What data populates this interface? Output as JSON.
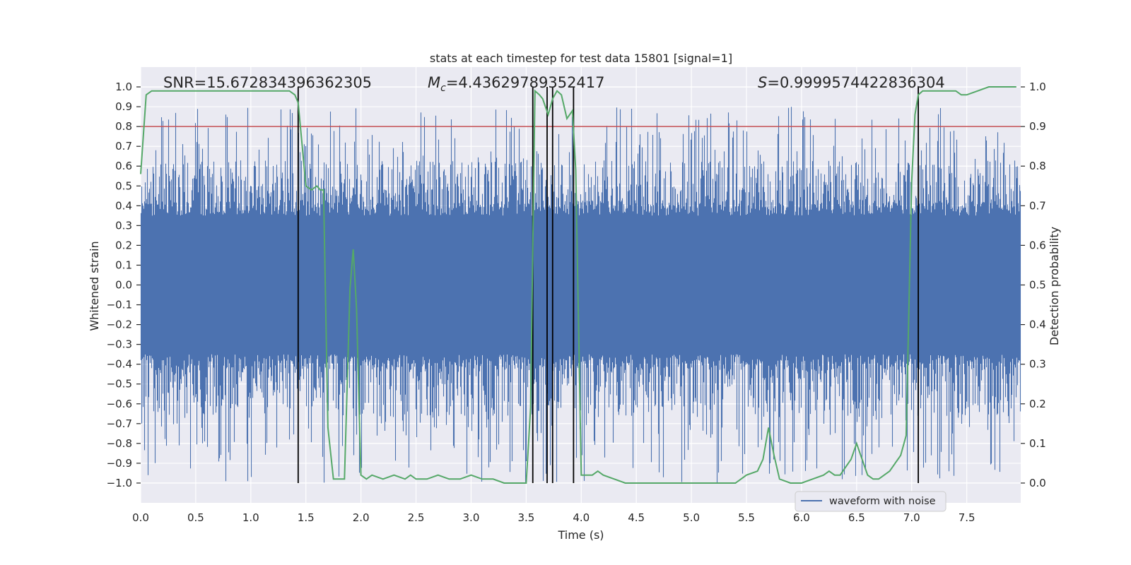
{
  "chart_data": {
    "type": "line",
    "title": "stats at each timestep for test data 15801 [signal=1]",
    "xlabel": "Time (s)",
    "ylabel": "Whitened strain",
    "ylabel_right": "Detection probability",
    "xlim": [
      0.0,
      7.99
    ],
    "ylim": [
      -1.1,
      1.1
    ],
    "ylim_right": [
      -0.05,
      1.05
    ],
    "x_ticks": [
      0.0,
      0.5,
      1.0,
      1.5,
      2.0,
      2.5,
      3.0,
      3.5,
      4.0,
      4.5,
      5.0,
      5.5,
      6.0,
      6.5,
      7.0,
      7.5
    ],
    "x_tick_labels": [
      "0.0",
      "0.5",
      "1.0",
      "1.5",
      "2.0",
      "2.5",
      "3.0",
      "3.5",
      "4.0",
      "4.5",
      "5.0",
      "5.5",
      "6.0",
      "6.5",
      "7.0",
      "7.5"
    ],
    "y_ticks": [
      1.0,
      0.9,
      0.8,
      0.7,
      0.6,
      0.5,
      0.4,
      0.3,
      0.2,
      0.1,
      0.0,
      -0.1,
      -0.2,
      -0.3,
      -0.4,
      -0.5,
      -0.6,
      -0.7,
      -0.8,
      -0.9,
      -1.0
    ],
    "y_tick_labels": [
      "1.0",
      "0.9",
      "0.8",
      "0.7",
      "0.6",
      "0.5",
      "0.4",
      "0.3",
      "0.2",
      "0.1",
      "0.0",
      "−0.1",
      "−0.2",
      "−0.3",
      "−0.4",
      "−0.5",
      "−0.6",
      "−0.7",
      "−0.8",
      "−0.9",
      "−1.0"
    ],
    "y_right_ticks": [
      1.0,
      0.9,
      0.8,
      0.7,
      0.6,
      0.5,
      0.4,
      0.3,
      0.2,
      0.1,
      0.0
    ],
    "y_right_tick_labels": [
      "1.0",
      "0.9",
      "0.8",
      "0.7",
      "0.6",
      "0.5",
      "0.4",
      "0.3",
      "0.2",
      "0.1",
      "0.0"
    ],
    "annotations": {
      "snr": "SNR=15.672834396362305",
      "mc_symbol": "M",
      "mc_sub": "c",
      "mc_value": "=4.43629789352417",
      "s_symbol": "S",
      "s_value": "=0.9999574422836304"
    },
    "threshold": {
      "value": 0.9,
      "axis": "right",
      "color": "#c44e52"
    },
    "vertical_lines": [
      1.43,
      3.56,
      3.69,
      3.74,
      3.93,
      7.06
    ],
    "legend": {
      "label": "waveform with noise",
      "location": "lower-right"
    },
    "colors": {
      "waveform": "#4c72b0",
      "probability": "#55a868",
      "threshold": "#c44e52",
      "vlines": "#000000",
      "background": "#eaeaf2",
      "grid": "#ffffff"
    },
    "waveform_summary": {
      "series": "waveform with noise",
      "duration_s": 7.99,
      "core_amplitude": 0.35,
      "peak_max": 0.9,
      "peak_min": -1.0
    },
    "series": [
      {
        "name": "detection probability",
        "axis": "right",
        "x": [
          0.0,
          0.05,
          0.1,
          0.2,
          0.3,
          0.4,
          0.5,
          0.6,
          0.7,
          0.8,
          0.9,
          1.0,
          1.1,
          1.2,
          1.3,
          1.35,
          1.4,
          1.43,
          1.47,
          1.5,
          1.55,
          1.6,
          1.63,
          1.66,
          1.7,
          1.75,
          1.8,
          1.85,
          1.9,
          1.93,
          1.96,
          2.0,
          2.05,
          2.1,
          2.2,
          2.3,
          2.4,
          2.45,
          2.5,
          2.6,
          2.7,
          2.8,
          2.9,
          3.0,
          3.1,
          3.2,
          3.3,
          3.4,
          3.45,
          3.5,
          3.54,
          3.58,
          3.62,
          3.65,
          3.7,
          3.74,
          3.78,
          3.82,
          3.87,
          3.92,
          3.95,
          4.0,
          4.05,
          4.1,
          4.15,
          4.2,
          4.3,
          4.4,
          4.5,
          4.6,
          4.8,
          5.0,
          5.2,
          5.4,
          5.5,
          5.6,
          5.65,
          5.7,
          5.75,
          5.8,
          5.9,
          6.0,
          6.1,
          6.2,
          6.25,
          6.3,
          6.35,
          6.4,
          6.45,
          6.5,
          6.55,
          6.6,
          6.65,
          6.7,
          6.75,
          6.8,
          6.9,
          6.95,
          7.0,
          7.03,
          7.06,
          7.1,
          7.15,
          7.2,
          7.3,
          7.35,
          7.4,
          7.45,
          7.5,
          7.6,
          7.7,
          7.8,
          7.85,
          7.9,
          7.95
        ],
        "values": [
          0.78,
          0.98,
          0.99,
          0.99,
          0.99,
          0.99,
          0.99,
          0.99,
          0.99,
          0.99,
          0.99,
          0.99,
          0.99,
          0.99,
          0.99,
          0.99,
          0.98,
          0.96,
          0.84,
          0.75,
          0.74,
          0.75,
          0.74,
          0.74,
          0.14,
          0.01,
          0.01,
          0.01,
          0.49,
          0.59,
          0.44,
          0.02,
          0.01,
          0.02,
          0.01,
          0.02,
          0.01,
          0.02,
          0.01,
          0.01,
          0.02,
          0.01,
          0.01,
          0.02,
          0.01,
          0.01,
          0.0,
          0.0,
          0.0,
          0.0,
          0.19,
          0.99,
          0.98,
          0.97,
          0.93,
          0.97,
          0.99,
          0.98,
          0.92,
          0.94,
          0.79,
          0.02,
          0.02,
          0.02,
          0.03,
          0.02,
          0.01,
          0.0,
          0.0,
          0.0,
          0.0,
          0.0,
          0.0,
          0.0,
          0.02,
          0.03,
          0.06,
          0.14,
          0.07,
          0.01,
          0.0,
          0.0,
          0.01,
          0.02,
          0.03,
          0.02,
          0.02,
          0.04,
          0.06,
          0.1,
          0.06,
          0.02,
          0.01,
          0.01,
          0.02,
          0.03,
          0.07,
          0.12,
          0.76,
          0.93,
          0.98,
          0.99,
          0.99,
          0.99,
          0.99,
          0.99,
          0.99,
          0.98,
          0.98,
          0.99,
          1.0,
          1.0,
          1.0,
          1.0,
          1.0
        ]
      }
    ]
  }
}
